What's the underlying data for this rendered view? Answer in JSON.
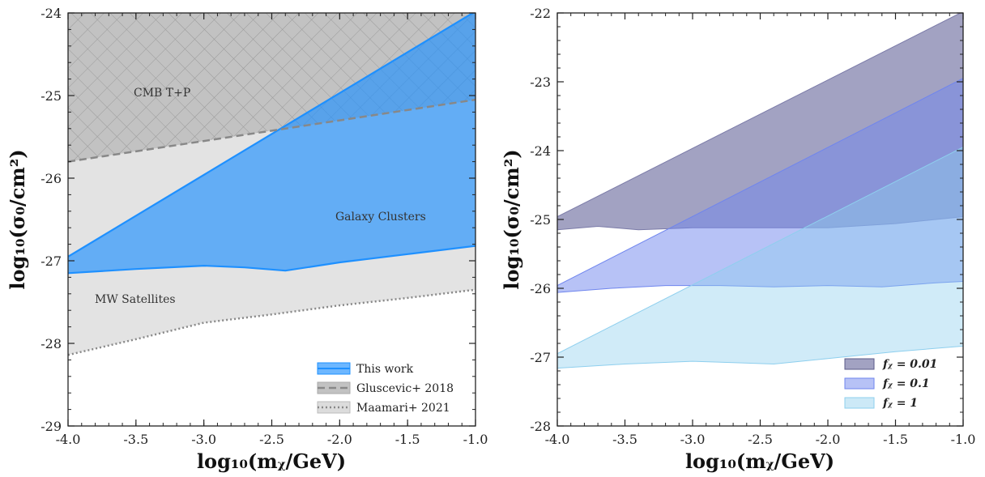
{
  "chart_data": [
    {
      "type": "area",
      "xlabel": "log₁₀(mᵪ/GeV)",
      "ylabel": "log₁₀(σ₀/cm²)",
      "xlim": [
        -4.0,
        -1.0
      ],
      "ylim": [
        -29,
        -24
      ],
      "x_ticks": [
        "-4.0",
        "-3.5",
        "-3.0",
        "-2.5",
        "-2.0",
        "-1.5",
        "-1.0"
      ],
      "y_ticks": [
        "-29",
        "-28",
        "-27",
        "-26",
        "-25",
        "-24"
      ],
      "grid": false,
      "legend_position": "bottom-right",
      "region_labels": {
        "cmb": "CMB T+P",
        "clusters": "Galaxy Clusters",
        "mw": "MW Satellites"
      },
      "series": [
        {
          "name": "This work",
          "color": "#1e90ff",
          "upper_x": [
            -4.0,
            -1.0
          ],
          "upper_y": [
            -26.95,
            -23.98
          ],
          "lower_x": [
            -4.0,
            -3.5,
            -3.0,
            -2.7,
            -2.4,
            -2.0,
            -1.5,
            -1.0
          ],
          "lower_y": [
            -27.15,
            -27.1,
            -27.06,
            -27.08,
            -27.12,
            -27.02,
            -26.92,
            -26.82
          ]
        },
        {
          "name": "Gluscevic+ 2018",
          "color": "#888888",
          "boundary_x": [
            -4.0,
            -1.0
          ],
          "boundary_y": [
            -25.8,
            -25.05
          ]
        },
        {
          "name": "Maamari+ 2021",
          "color": "#888888",
          "boundary_x": [
            -4.0,
            -3.5,
            -3.0,
            -2.5,
            -2.0,
            -1.5,
            -1.0
          ],
          "boundary_y": [
            -28.14,
            -27.95,
            -27.75,
            -27.65,
            -27.54,
            -27.45,
            -27.35
          ]
        }
      ]
    },
    {
      "type": "area",
      "xlabel": "log₁₀(mᵪ/GeV)",
      "ylabel": "log₁₀(σ₀/cm²)",
      "xlim": [
        -4.0,
        -1.0
      ],
      "ylim": [
        -28,
        -22
      ],
      "x_ticks": [
        "-4.0",
        "-3.5",
        "-3.0",
        "-2.5",
        "-2.0",
        "-1.5",
        "-1.0"
      ],
      "y_ticks": [
        "-28",
        "-27",
        "-26",
        "-25",
        "-24",
        "-23",
        "-22"
      ],
      "grid": false,
      "legend_position": "bottom-right",
      "series": [
        {
          "name": "fᵪ = 0.01",
          "color": "#7b7ba8",
          "upper_x": [
            -4.0,
            -1.0
          ],
          "upper_y": [
            -24.96,
            -21.98
          ],
          "lower_x": [
            -4.0,
            -3.7,
            -3.4,
            -3.0,
            -2.5,
            -2.0,
            -1.5,
            -1.0
          ],
          "lower_y": [
            -25.15,
            -25.1,
            -25.15,
            -25.12,
            -25.12,
            -25.12,
            -25.06,
            -24.96
          ]
        },
        {
          "name": "fᵪ = 0.1",
          "color": "#6f85ee",
          "upper_x": [
            -4.0,
            -1.0
          ],
          "upper_y": [
            -25.96,
            -22.95
          ],
          "lower_x": [
            -4.0,
            -3.6,
            -3.2,
            -2.8,
            -2.4,
            -2.0,
            -1.6,
            -1.2,
            -1.0
          ],
          "lower_y": [
            -26.06,
            -26.0,
            -25.96,
            -25.96,
            -25.98,
            -25.96,
            -25.98,
            -25.92,
            -25.9
          ]
        },
        {
          "name": "fᵪ = 1",
          "color": "#8ecfee",
          "upper_x": [
            -4.0,
            -1.0
          ],
          "upper_y": [
            -26.95,
            -23.95
          ],
          "lower_x": [
            -4.0,
            -3.5,
            -3.0,
            -2.7,
            -2.4,
            -2.0,
            -1.5,
            -1.0
          ],
          "lower_y": [
            -27.16,
            -27.1,
            -27.06,
            -27.08,
            -27.1,
            -27.02,
            -26.92,
            -26.84
          ]
        }
      ]
    }
  ]
}
